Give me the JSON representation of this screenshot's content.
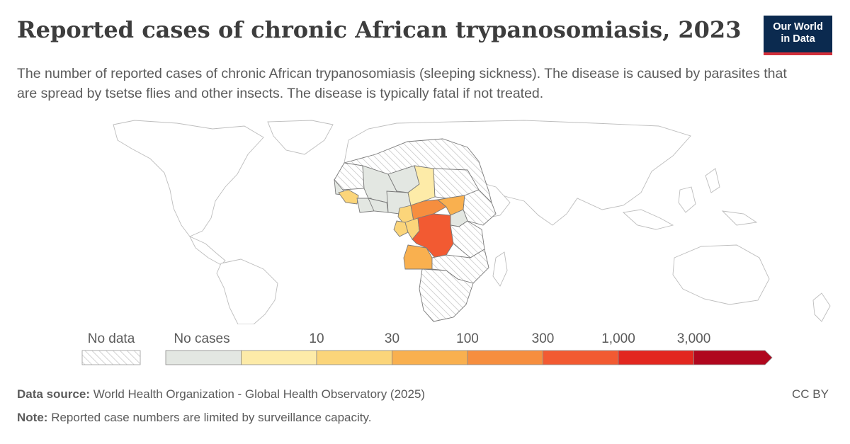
{
  "header": {
    "title": "Reported cases of chronic African trypanosomiasis, 2023",
    "subtitle": "The number of reported cases of chronic African trypanosomiasis (sleeping sickness). The disease is caused by parasites that are spread by tsetse flies and other insects. The disease is typically fatal if not treated."
  },
  "logo": {
    "line1": "Our World",
    "line2": "in Data"
  },
  "legend": {
    "no_data_label": "No data",
    "no_cases_label": "No cases",
    "thresholds": [
      "10",
      "30",
      "100",
      "300",
      "1,000",
      "3,000"
    ],
    "colors": [
      "#e3e7e2",
      "#fdeba8",
      "#fbd57a",
      "#f9b04f",
      "#f68e3f",
      "#f25a32",
      "#e2271f",
      "#b0071e"
    ],
    "no_data_color": "#cfcfcf"
  },
  "chart_data": {
    "type": "choropleth",
    "year": 2023,
    "bins": [
      "No cases",
      "1–10",
      "10–30",
      "30–100",
      "100–300",
      "300–1,000",
      "1,000–3,000",
      ">3,000"
    ],
    "regions": [
      {
        "name": "Democratic Republic of Congo",
        "bin": "300–1,000"
      },
      {
        "name": "Central African Republic",
        "bin": "100–300"
      },
      {
        "name": "South Sudan",
        "bin": "30–100"
      },
      {
        "name": "Angola",
        "bin": "30–100"
      },
      {
        "name": "Cameroon",
        "bin": "10–30"
      },
      {
        "name": "Gabon",
        "bin": "10–30"
      },
      {
        "name": "Congo",
        "bin": "10–30"
      },
      {
        "name": "Guinea",
        "bin": "10–30"
      },
      {
        "name": "Chad",
        "bin": "1–10"
      },
      {
        "name": "Equatorial Guinea",
        "bin": "1–10"
      },
      {
        "name": "Mali",
        "bin": "No cases"
      },
      {
        "name": "Niger",
        "bin": "No cases"
      },
      {
        "name": "Nigeria",
        "bin": "No cases"
      },
      {
        "name": "Senegal",
        "bin": "No cases"
      },
      {
        "name": "Burkina Faso",
        "bin": "No cases"
      },
      {
        "name": "Côte d'Ivoire",
        "bin": "No cases"
      },
      {
        "name": "Ghana",
        "bin": "No cases"
      },
      {
        "name": "Uganda",
        "bin": "No cases"
      }
    ]
  },
  "footer": {
    "source_label": "Data source:",
    "source_text": "World Health Organization - Global Health Observatory (2025)",
    "note_label": "Note:",
    "note_text": "Reported case numbers are limited by surveillance capacity.",
    "license": "CC BY"
  }
}
